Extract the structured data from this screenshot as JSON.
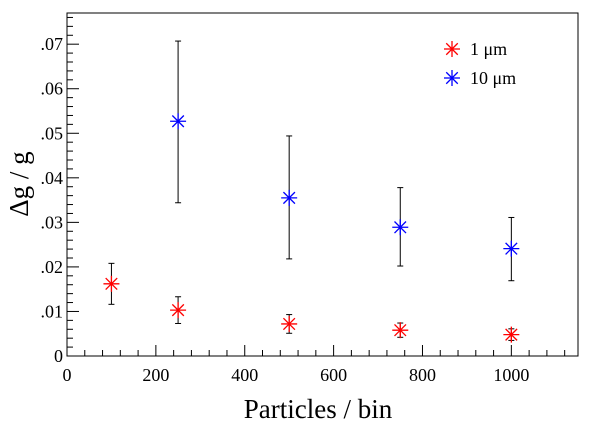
{
  "chart_data": {
    "type": "scatter",
    "title": "",
    "xlabel": "Particles / bin",
    "ylabel": "Δg / g",
    "xlim": [
      0,
      1150
    ],
    "ylim": [
      0,
      0.077
    ],
    "x_ticks": [
      0,
      200,
      400,
      600,
      800,
      1000
    ],
    "x_tick_labels": [
      "0",
      "200",
      "400",
      "600",
      "800",
      "1000"
    ],
    "y_ticks": [
      0,
      0.01,
      0.02,
      0.03,
      0.04,
      0.05,
      0.06,
      0.07
    ],
    "y_tick_labels": [
      "0",
      ".01",
      ".02",
      ".03",
      ".04",
      ".05",
      ".06",
      ".07"
    ],
    "grid": false,
    "legend_position": "top-right",
    "marker": "asterisk",
    "series": [
      {
        "name": "1 μm",
        "color": "#ff0000",
        "x": [
          100,
          250,
          500,
          750,
          1000
        ],
        "y": [
          0.0162,
          0.0103,
          0.0072,
          0.0058,
          0.0048
        ],
        "err_low": [
          0.0116,
          0.0073,
          0.0051,
          0.0042,
          0.0035
        ],
        "err_high": [
          0.0208,
          0.0133,
          0.0093,
          0.0074,
          0.0061
        ]
      },
      {
        "name": "10 μm",
        "color": "#0000ff",
        "x": [
          250,
          500,
          750,
          1000
        ],
        "y": [
          0.0527,
          0.0355,
          0.0289,
          0.0241
        ],
        "err_low": [
          0.0344,
          0.0218,
          0.0202,
          0.0169
        ],
        "err_high": [
          0.0707,
          0.0494,
          0.0378,
          0.0311
        ]
      }
    ]
  }
}
